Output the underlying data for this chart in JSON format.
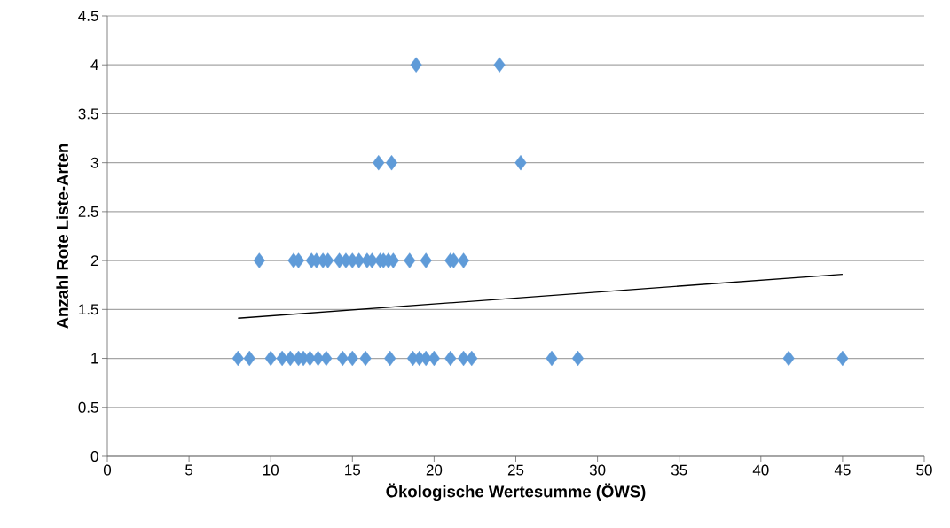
{
  "chart_data": {
    "type": "scatter",
    "xlabel": "Ökologische Wertesumme (ÖWS)",
    "ylabel": "Anzahl Rote Liste-Arten",
    "xlim": [
      0,
      50
    ],
    "ylim": [
      0,
      4.5
    ],
    "xticks": [
      0,
      5,
      10,
      15,
      20,
      25,
      30,
      35,
      40,
      45,
      50
    ],
    "yticks": [
      0,
      0.5,
      1,
      1.5,
      2,
      2.5,
      3,
      3.5,
      4,
      4.5
    ],
    "grid": "y",
    "series": [
      {
        "marker": "diamond",
        "color": "#5f9bd8",
        "x": [
          18.9,
          24.0,
          16.6,
          17.4,
          25.3,
          9.3,
          11.4,
          11.7,
          12.5,
          12.8,
          13.2,
          13.5,
          14.2,
          14.6,
          15.0,
          15.4,
          15.9,
          16.2,
          16.7,
          16.9,
          17.2,
          17.5,
          18.5,
          19.5,
          21.0,
          21.2,
          21.8,
          8.0,
          8.7,
          10.0,
          10.7,
          11.2,
          11.7,
          12.0,
          12.4,
          12.9,
          13.4,
          14.4,
          15.0,
          15.8,
          17.3,
          18.7,
          19.1,
          19.5,
          20.0,
          21.0,
          21.8,
          22.3,
          27.2,
          28.8,
          41.7,
          45.0
        ],
        "values": [
          4,
          4,
          3,
          3,
          3,
          2,
          2,
          2,
          2,
          2,
          2,
          2,
          2,
          2,
          2,
          2,
          2,
          2,
          2,
          2,
          2,
          2,
          2,
          2,
          2,
          2,
          2,
          1,
          1,
          1,
          1,
          1,
          1,
          1,
          1,
          1,
          1,
          1,
          1,
          1,
          1,
          1,
          1,
          1,
          1,
          1,
          1,
          1,
          1,
          1,
          1,
          1
        ]
      },
      {
        "type": "line",
        "marker": "none",
        "line_style": "solid",
        "color": "#000000",
        "x": [
          8,
          45
        ],
        "values": [
          1.41,
          1.86
        ]
      }
    ]
  }
}
